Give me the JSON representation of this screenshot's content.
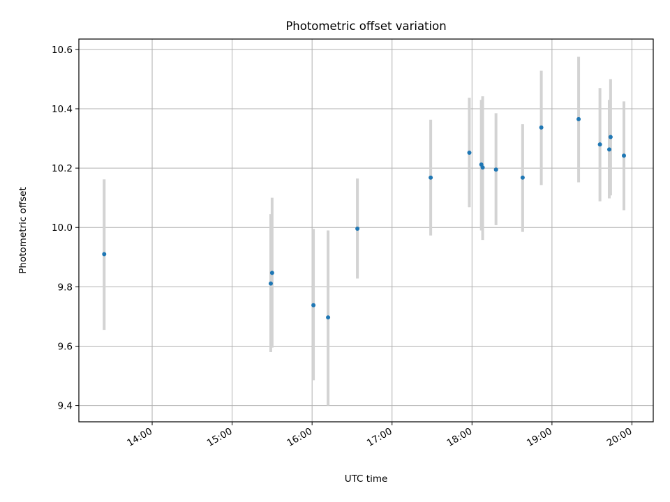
{
  "chart_data": {
    "type": "scatter",
    "title": "Photometric offset variation",
    "xlabel": "UTC time",
    "ylabel": "Photometric offset",
    "x_unit": "UTC time (HH:MM)",
    "xlim": [
      "13:05",
      "20:16"
    ],
    "ylim": [
      9.345,
      10.635
    ],
    "x_ticks": [
      "14:00",
      "15:00",
      "16:00",
      "17:00",
      "18:00",
      "19:00",
      "20:00"
    ],
    "y_ticks": [
      9.4,
      9.6,
      9.8,
      10.0,
      10.2,
      10.4,
      10.6
    ],
    "y_tick_labels": [
      "9.4",
      "9.6",
      "9.8",
      "10.0",
      "10.2",
      "10.4",
      "10.6"
    ],
    "grid": true,
    "legend": "none",
    "point_color": "#1f77b4",
    "errorbar_color": "#d3d3d3",
    "points": [
      {
        "t": "13:24",
        "y": 9.91,
        "lo": 9.655,
        "hi": 10.162
      },
      {
        "t": "15:29",
        "y": 9.811,
        "lo": 9.58,
        "hi": 10.045
      },
      {
        "t": "15:30",
        "y": 9.847,
        "lo": 9.595,
        "hi": 10.1
      },
      {
        "t": "16:01",
        "y": 9.738,
        "lo": 9.485,
        "hi": 9.995
      },
      {
        "t": "16:12",
        "y": 9.697,
        "lo": 9.4,
        "hi": 9.99
      },
      {
        "t": "16:34",
        "y": 9.996,
        "lo": 9.828,
        "hi": 10.165
      },
      {
        "t": "17:29",
        "y": 10.168,
        "lo": 9.973,
        "hi": 10.363
      },
      {
        "t": "17:58",
        "y": 10.252,
        "lo": 10.068,
        "hi": 10.437
      },
      {
        "t": "18:07",
        "y": 10.212,
        "lo": 9.99,
        "hi": 10.43
      },
      {
        "t": "18:08",
        "y": 10.202,
        "lo": 9.958,
        "hi": 10.442
      },
      {
        "t": "18:18",
        "y": 10.195,
        "lo": 10.008,
        "hi": 10.385
      },
      {
        "t": "18:38",
        "y": 10.168,
        "lo": 9.985,
        "hi": 10.348
      },
      {
        "t": "18:52",
        "y": 10.337,
        "lo": 10.143,
        "hi": 10.528
      },
      {
        "t": "19:20",
        "y": 10.365,
        "lo": 10.152,
        "hi": 10.575
      },
      {
        "t": "19:36",
        "y": 10.28,
        "lo": 10.088,
        "hi": 10.47
      },
      {
        "t": "19:43",
        "y": 10.263,
        "lo": 10.098,
        "hi": 10.43
      },
      {
        "t": "19:44",
        "y": 10.305,
        "lo": 10.108,
        "hi": 10.5
      },
      {
        "t": "19:54",
        "y": 10.242,
        "lo": 10.058,
        "hi": 10.425
      }
    ]
  }
}
